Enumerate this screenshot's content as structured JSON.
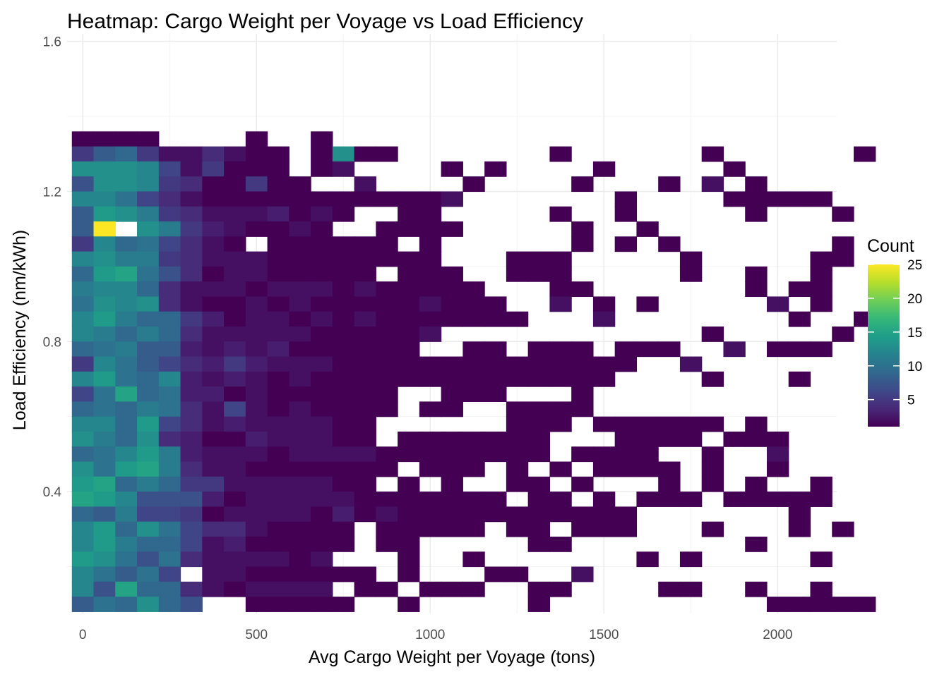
{
  "chart_data": {
    "type": "heatmap",
    "title": "Heatmap: Cargo Weight per Voyage vs Load Efficiency",
    "xlabel": "Avg Cargo Weight per Voyage (tons)",
    "ylabel": "Load Efficiency (nm/kWh)",
    "xlim": [
      -45,
      2170
    ],
    "ylim": [
      0.075,
      1.62
    ],
    "x_ticks": [
      0,
      500,
      1000,
      1500,
      2000
    ],
    "x_tick_labels": [
      "0",
      "500",
      "1000",
      "1500",
      "2000"
    ],
    "y_ticks": [
      0.4,
      0.8,
      1.2,
      1.6
    ],
    "y_tick_labels": [
      "0.4",
      "0.8",
      "1.2",
      "1.6"
    ],
    "grid": true,
    "bin_width_x": 62.5,
    "bin_width_y": 0.04,
    "x_start": 0,
    "y_start": 0.1,
    "rows_top_to_bottom": [
      "1111....1..1....................",
      "5895224211.1D11...0...1......1......1",
      "DDDC625111.12...01.1....1.....1.....",
      "7DDC5411511..2....1....1...1.2.1....",
      "CCA642111111111112.......1....11111..",
      "8EDB542223121..11.....1..1.....1...1.",
      "8Q.DB5321121..1111.....1..1.........",
      "5C9A6421.111111.1......1.1.1.......1",
      "CDBB5422211111111...111.....1.....11",
      "9EFA7412211111.111..111.....1..1..1.",
      "BCC9422212221211111...11.......1.11.",
      "ADCD4211212111112111..2.1.1.....2.1.",
      "CEB995312212121111111...2........1..1",
      "CB9B9422222111112............1.....1.1",
      "9AB8832323111111..11.111.111..2.111.",
      "5CA86435322211111111111111..2.......",
      "CEA9C32321211111111111111....1...1..",
      "6AF9A3312111111..111...1............",
      "9A9BA4262121111.11..1111..........",
      "CC9E6423222211......111.111111.1",
      "DB9D4311322211.1111111...1111.111",
      "9ACEB32221222211111111.1111..1..2",
      "DAEFB4221111111.111.1.1.1111.1..1.",
      "EF9B9552222211.1.1..11.1...1.1.1..1",
      "FEC77731222221111111.11.1.111.11111.",
      "98B66512222131211111111111.......1",
      "CE9DA64421111.11111.11.111...1...1.1",
      "CEB9962311111.11.....11........1...",
      "EDA7A4222212...1..1.......1.1.....1",
      "CA8A6.22111111.1...11..2.............",
      "C7F994212222.11.111..11....11..1..1",
      "8A9D97..11111..1.....1..........11111"
    ]
  },
  "legend": {
    "title": "Count",
    "ticks": [
      5,
      10,
      15,
      20,
      25
    ],
    "tick_labels": [
      "5",
      "10",
      "15",
      "20",
      "25"
    ],
    "min": 1,
    "max": 25,
    "colors": [
      "#440154",
      "#482878",
      "#3e4989",
      "#31688e",
      "#26828e",
      "#1f9e89",
      "#35b779",
      "#6ece58",
      "#b5de2b",
      "#fde725"
    ]
  },
  "colors": {
    "background": "#ffffff",
    "grid_major": "#ebebeb",
    "grid_minor": "#f3f3f3"
  }
}
